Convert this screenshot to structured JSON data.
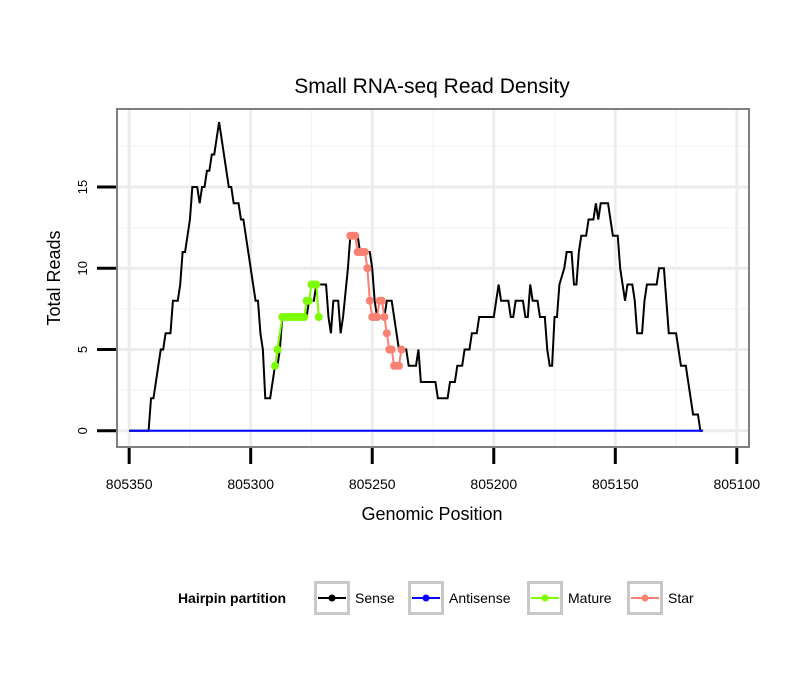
{
  "chart_data": {
    "type": "line",
    "title": "Small RNA-seq Read Density",
    "xlabel": "Genomic Position",
    "ylabel": "Total Reads",
    "xlim": [
      805355,
      805095
    ],
    "x_reversed": true,
    "ylim": [
      -1,
      19.8
    ],
    "x_ticks": [
      805350,
      805300,
      805250,
      805200,
      805150,
      805100
    ],
    "y_ticks": [
      0,
      5,
      10,
      15
    ],
    "grid": true,
    "legend": {
      "title": "Hairpin partition",
      "position": "bottom",
      "entries": [
        {
          "label": "Sense",
          "color": "#000000"
        },
        {
          "label": "Antisense",
          "color": "#0000ff"
        },
        {
          "label": "Mature",
          "color": "#7cfc00"
        },
        {
          "label": "Star",
          "color": "#fa8072"
        }
      ]
    },
    "series": [
      {
        "name": "Sense",
        "color": "#000000",
        "points": [
          [
            805350,
            0
          ],
          [
            805342,
            0
          ],
          [
            805341,
            2
          ],
          [
            805340,
            2
          ],
          [
            805339,
            3
          ],
          [
            805338,
            4
          ],
          [
            805337,
            5
          ],
          [
            805336,
            5
          ],
          [
            805335,
            6
          ],
          [
            805334,
            6
          ],
          [
            805333,
            6
          ],
          [
            805332,
            8
          ],
          [
            805331,
            8
          ],
          [
            805330,
            8
          ],
          [
            805329,
            9
          ],
          [
            805328,
            11
          ],
          [
            805327,
            11
          ],
          [
            805326,
            12
          ],
          [
            805325,
            13
          ],
          [
            805324,
            15
          ],
          [
            805322,
            15
          ],
          [
            805321,
            14
          ],
          [
            805320,
            15
          ],
          [
            805319,
            15
          ],
          [
            805318,
            16
          ],
          [
            805317,
            16
          ],
          [
            805316,
            17
          ],
          [
            805315,
            17
          ],
          [
            805314,
            18
          ],
          [
            805313,
            19
          ],
          [
            805312,
            18
          ],
          [
            805311,
            17
          ],
          [
            805310,
            16
          ],
          [
            805309,
            15
          ],
          [
            805308,
            15
          ],
          [
            805307,
            14
          ],
          [
            805305,
            14
          ],
          [
            805304,
            13
          ],
          [
            805303,
            13
          ],
          [
            805302,
            12
          ],
          [
            805301,
            11
          ],
          [
            805300,
            10
          ],
          [
            805299,
            9
          ],
          [
            805298,
            8
          ],
          [
            805297,
            8
          ],
          [
            805296,
            6
          ],
          [
            805295,
            5
          ],
          [
            805294,
            2
          ],
          [
            805293,
            2
          ],
          [
            805292,
            2
          ],
          [
            805291,
            3
          ],
          [
            805290,
            4
          ],
          [
            805289,
            4
          ],
          [
            805288,
            5
          ],
          [
            805287,
            7
          ],
          [
            805277,
            7
          ],
          [
            805276,
            8
          ],
          [
            805274,
            8
          ],
          [
            805273,
            9
          ],
          [
            805269,
            9
          ],
          [
            805268,
            7
          ],
          [
            805267,
            6
          ],
          [
            805266,
            8
          ],
          [
            805264,
            8
          ],
          [
            805263,
            6
          ],
          [
            805262,
            7
          ],
          [
            805260,
            10
          ],
          [
            805259,
            12
          ],
          [
            805256,
            12
          ],
          [
            805255,
            11
          ],
          [
            805251,
            11
          ],
          [
            805250,
            10
          ],
          [
            805249,
            8
          ],
          [
            805248,
            7
          ],
          [
            805245,
            7
          ],
          [
            805244,
            8
          ],
          [
            805242,
            8
          ],
          [
            805241,
            7
          ],
          [
            805240,
            6
          ],
          [
            805239,
            5
          ],
          [
            805236,
            5
          ],
          [
            805235,
            4
          ],
          [
            805232,
            4
          ],
          [
            805231,
            5
          ],
          [
            805230,
            3
          ],
          [
            805224,
            3
          ],
          [
            805223,
            2
          ],
          [
            805219,
            2
          ],
          [
            805218,
            3
          ],
          [
            805216,
            3
          ],
          [
            805215,
            4
          ],
          [
            805213,
            4
          ],
          [
            805212,
            5
          ],
          [
            805210,
            5
          ],
          [
            805209,
            6
          ],
          [
            805207,
            6
          ],
          [
            805206,
            7
          ],
          [
            805200,
            7
          ],
          [
            805199,
            8
          ],
          [
            805198,
            9
          ],
          [
            805197,
            8
          ],
          [
            805194,
            8
          ],
          [
            805193,
            7
          ],
          [
            805192,
            7
          ],
          [
            805191,
            8
          ],
          [
            805188,
            8
          ],
          [
            805187,
            7
          ],
          [
            805186,
            7
          ],
          [
            805185,
            9
          ],
          [
            805184,
            8
          ],
          [
            805182,
            8
          ],
          [
            805181,
            7
          ],
          [
            805179,
            7
          ],
          [
            805178,
            5
          ],
          [
            805177,
            4
          ],
          [
            805176,
            4
          ],
          [
            805175,
            7
          ],
          [
            805174,
            7
          ],
          [
            805173,
            9
          ],
          [
            805171,
            10
          ],
          [
            805170,
            11
          ],
          [
            805168,
            11
          ],
          [
            805167,
            9
          ],
          [
            805166,
            9
          ],
          [
            805165,
            11
          ],
          [
            805164,
            12
          ],
          [
            805162,
            12
          ],
          [
            805161,
            13
          ],
          [
            805159,
            13
          ],
          [
            805158,
            14
          ],
          [
            805157,
            13
          ],
          [
            805156,
            14
          ],
          [
            805153,
            14
          ],
          [
            805152,
            13
          ],
          [
            805151,
            12
          ],
          [
            805149,
            12
          ],
          [
            805148,
            10
          ],
          [
            805147,
            9
          ],
          [
            805146,
            8
          ],
          [
            805145,
            9
          ],
          [
            805143,
            9
          ],
          [
            805142,
            8
          ],
          [
            805141,
            6
          ],
          [
            805139,
            6
          ],
          [
            805138,
            8
          ],
          [
            805137,
            9
          ],
          [
            805133,
            9
          ],
          [
            805132,
            10
          ],
          [
            805130,
            10
          ],
          [
            805129,
            8
          ],
          [
            805128,
            6
          ],
          [
            805125,
            6
          ],
          [
            805124,
            5
          ],
          [
            805123,
            4
          ],
          [
            805121,
            4
          ],
          [
            805120,
            3
          ],
          [
            805119,
            2
          ],
          [
            805118,
            1
          ],
          [
            805116,
            1
          ],
          [
            805115,
            0
          ],
          [
            805114,
            0
          ]
        ]
      },
      {
        "name": "Antisense",
        "color": "#0000ff",
        "points": [
          [
            805350,
            0
          ],
          [
            805114,
            0
          ]
        ]
      },
      {
        "name": "Mature",
        "color": "#7cfc00",
        "points": [
          [
            805290,
            4
          ],
          [
            805289,
            5
          ],
          [
            805287,
            7
          ],
          [
            805286,
            7
          ],
          [
            805285,
            7
          ],
          [
            805284,
            7
          ],
          [
            805283,
            7
          ],
          [
            805282,
            7
          ],
          [
            805281,
            7
          ],
          [
            805280,
            7
          ],
          [
            805279,
            7
          ],
          [
            805278,
            7
          ],
          [
            805277,
            8
          ],
          [
            805276,
            8
          ],
          [
            805275,
            9
          ],
          [
            805274,
            9
          ],
          [
            805273,
            9
          ],
          [
            805272,
            7
          ]
        ]
      },
      {
        "name": "Star",
        "color": "#fa8072",
        "points": [
          [
            805259,
            12
          ],
          [
            805258,
            12
          ],
          [
            805257,
            12
          ],
          [
            805256,
            11
          ],
          [
            805255,
            11
          ],
          [
            805254,
            11
          ],
          [
            805253,
            11
          ],
          [
            805252,
            10
          ],
          [
            805251,
            8
          ],
          [
            805250,
            7
          ],
          [
            805249,
            7
          ],
          [
            805248,
            7
          ],
          [
            805247,
            8
          ],
          [
            805246,
            8
          ],
          [
            805245,
            7
          ],
          [
            805244,
            6
          ],
          [
            805243,
            5
          ],
          [
            805242,
            5
          ],
          [
            805241,
            4
          ],
          [
            805240,
            4
          ],
          [
            805239,
            4
          ],
          [
            805238,
            5
          ]
        ]
      }
    ]
  }
}
